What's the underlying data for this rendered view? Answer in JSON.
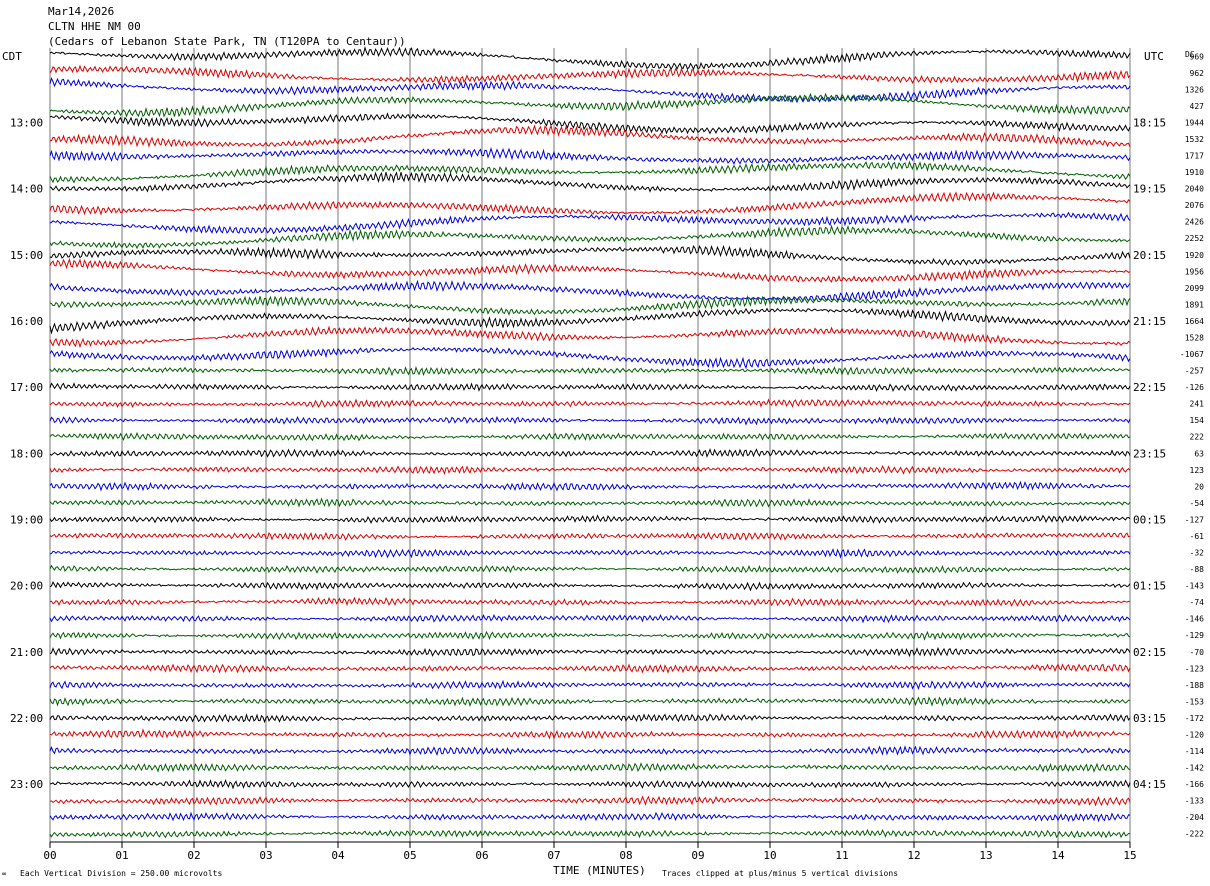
{
  "header": {
    "date": "Mar14,2026",
    "station": "CLTN HHE NM 00",
    "location": "(Cedars of Lebanon State Park, TN (T120PA to Centaur))"
  },
  "chart_data": {
    "type": "line",
    "left_timezone": "CDT",
    "right_timezone": "UTC",
    "dc_label": "DC",
    "xlabel": "TIME (MINUTES)",
    "x_ticks": [
      "00",
      "01",
      "02",
      "03",
      "04",
      "05",
      "06",
      "07",
      "08",
      "09",
      "10",
      "11",
      "12",
      "13",
      "14",
      "15"
    ],
    "xlim": [
      0,
      15
    ],
    "left_hour_labels": [
      "13:00",
      "14:00",
      "15:00",
      "16:00",
      "17:00",
      "18:00",
      "19:00",
      "20:00",
      "21:00",
      "22:00",
      "23:00"
    ],
    "right_hour_labels": [
      "18:15",
      "19:15",
      "20:15",
      "21:15",
      "22:15",
      "23:15",
      "00:15",
      "01:15",
      "02:15",
      "03:15",
      "04:15"
    ],
    "trace_colors": [
      "#000000",
      "#e00000",
      "#0000e0",
      "#006000"
    ],
    "dc_offsets": [
      969,
      962,
      1326,
      427,
      1944,
      1532,
      1717,
      1910,
      2040,
      2076,
      2426,
      2252,
      1920,
      1956,
      2099,
      1891,
      1664,
      1528,
      -1067,
      -257,
      -126,
      241,
      154,
      222,
      63,
      123,
      20,
      -54,
      -127,
      -61,
      -32,
      -88,
      -143,
      -74,
      -146,
      -129,
      -70,
      -123,
      -188,
      -153,
      -172,
      -120,
      -114,
      -142,
      -166,
      -133,
      -204,
      -222
    ],
    "footer_left": "Each Vertical Division =  250.00 microvolts",
    "footer_right": "Traces clipped at plus/minus 5 vertical divisions"
  }
}
